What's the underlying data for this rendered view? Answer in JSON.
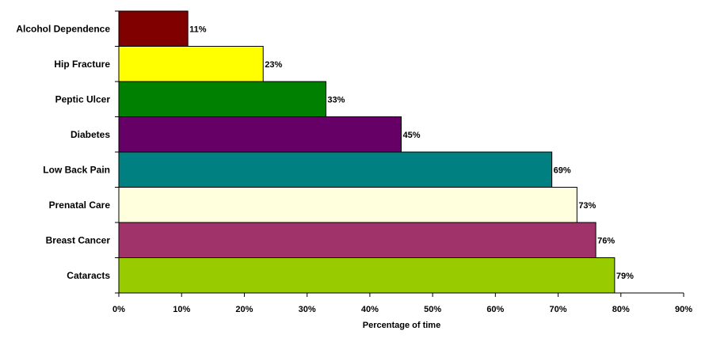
{
  "chart_data": {
    "type": "bar",
    "orientation": "horizontal",
    "title": "",
    "xlabel": "Percentage of time",
    "ylabel": "",
    "xlim": [
      0,
      90
    ],
    "x_ticks": [
      "0%",
      "10%",
      "20%",
      "30%",
      "40%",
      "50%",
      "60%",
      "70%",
      "80%",
      "90%"
    ],
    "grid": false,
    "legend": "none",
    "categories": [
      "Alcohol Dependence",
      "Hip Fracture",
      "Peptic Ulcer",
      "Diabetes",
      "Low Back Pain",
      "Prenatal Care",
      "Breast Cancer",
      "Cataracts"
    ],
    "values": [
      11,
      23,
      33,
      45,
      69,
      73,
      76,
      79
    ],
    "value_labels": [
      "11%",
      "23%",
      "33%",
      "45%",
      "69%",
      "73%",
      "76%",
      "79%"
    ],
    "colors": [
      "#800000",
      "#ffff00",
      "#008000",
      "#660066",
      "#008080",
      "#ffffdd",
      "#a0336a",
      "#99cc00"
    ]
  }
}
